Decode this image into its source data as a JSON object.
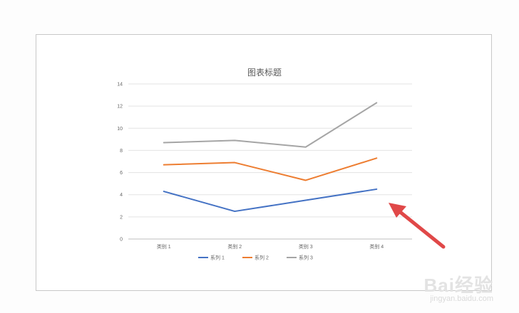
{
  "chart_data": {
    "type": "line",
    "title": "图表标题",
    "categories": [
      "类别 1",
      "类别 2",
      "类别 3",
      "类别 4"
    ],
    "series": [
      {
        "name": "系列 1",
        "color": "#4472c4",
        "values": [
          4.3,
          2.5,
          3.5,
          4.5
        ]
      },
      {
        "name": "系列 2",
        "color": "#ed7d31",
        "values": [
          6.7,
          6.9,
          5.3,
          7.3
        ]
      },
      {
        "name": "系列 3",
        "color": "#a5a5a5",
        "values": [
          8.7,
          8.9,
          8.3,
          12.3
        ]
      }
    ],
    "ylim": [
      0,
      14
    ],
    "yticks": [
      0,
      2,
      4,
      6,
      8,
      10,
      12,
      14
    ],
    "grid": true,
    "legend": "bottom"
  },
  "annotation": {
    "arrow_color": "#e04848",
    "arrow_target": "系列 1 · 类别 4"
  },
  "watermark": {
    "main": "Bai经验",
    "sub": "jingyan.baidu.com"
  }
}
